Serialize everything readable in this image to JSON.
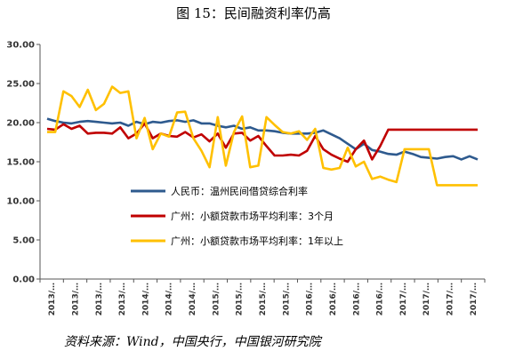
{
  "chart_data": {
    "type": "line",
    "title": "图  15：民间融资利率仍高",
    "source": "资料来源：Wind，中国央行，中国银河研究院",
    "xlabel": "",
    "ylabel": "",
    "ylim": [
      0,
      30
    ],
    "yticks": [
      "0.00",
      "5.00",
      "10.00",
      "15.00",
      "20.00",
      "25.00",
      "30.00"
    ],
    "x_tick_labels": [
      "2013/…",
      "2013/…",
      "2013/…",
      "2013/…",
      "2014/…",
      "2014/…",
      "2014/…",
      "2015/…",
      "2015/…",
      "2015/…",
      "2015/…",
      "2016/…",
      "2016/…",
      "2016/…",
      "2016/…",
      "2017/…",
      "2017/…",
      "2017/…",
      "2017/…"
    ],
    "grid": false,
    "legend_position": "center-right",
    "series": [
      {
        "name": "人民币：温州民间借贷综合利率",
        "color": "#2e5a8e",
        "values": [
          20.5,
          20.2,
          20.0,
          19.9,
          20.1,
          20.2,
          20.1,
          20.0,
          19.9,
          20.0,
          19.6,
          20.1,
          19.8,
          20.1,
          20.0,
          20.2,
          20.3,
          20.1,
          20.3,
          19.9,
          19.9,
          19.6,
          19.4,
          19.6,
          19.2,
          19.4,
          19.0,
          19.0,
          18.9,
          18.7,
          18.6,
          18.6,
          18.6,
          18.7,
          19.0,
          18.5,
          18.0,
          17.3,
          16.6,
          17.3,
          16.5,
          16.3,
          16.0,
          15.9,
          16.3,
          16.0,
          15.6,
          15.5,
          15.4,
          15.6,
          15.7,
          15.3,
          15.7,
          15.3
        ]
      },
      {
        "name": "广州：小额贷款市场平均利率：3个月",
        "color": "#c00000",
        "values": [
          19.2,
          19.1,
          19.8,
          19.2,
          19.6,
          18.6,
          18.7,
          18.7,
          18.6,
          19.4,
          18.0,
          18.6,
          19.9,
          18.0,
          18.6,
          18.3,
          18.2,
          18.8,
          18.1,
          18.5,
          17.6,
          18.6,
          16.8,
          18.6,
          18.7,
          17.7,
          18.3,
          17.0,
          15.8,
          15.8,
          15.9,
          15.8,
          16.4,
          18.3,
          16.6,
          15.9,
          15.4,
          15.0,
          16.6,
          17.7,
          15.3,
          17.0,
          19.1,
          19.1,
          19.1,
          19.1,
          19.1,
          19.1,
          19.1,
          19.1,
          19.1,
          19.1,
          19.1,
          19.1
        ]
      },
      {
        "name": "广州：小额贷款市场平均利率：1年以上",
        "color": "#ffc000",
        "values": [
          18.8,
          18.8,
          24.0,
          23.4,
          22.0,
          24.2,
          21.6,
          22.4,
          24.6,
          23.8,
          24.0,
          18.0,
          20.6,
          16.6,
          18.6,
          18.2,
          21.3,
          21.4,
          18.0,
          16.4,
          14.3,
          20.7,
          14.5,
          18.8,
          20.8,
          14.3,
          14.5,
          20.7,
          19.7,
          18.8,
          18.6,
          18.9,
          17.8,
          19.2,
          14.2,
          14.0,
          14.2,
          16.8,
          14.4,
          15.0,
          12.8,
          13.1,
          12.7,
          12.4,
          16.6,
          16.6,
          16.6,
          16.6,
          12.0,
          12.0,
          12.0,
          12.0,
          12.0,
          12.0
        ]
      }
    ]
  }
}
